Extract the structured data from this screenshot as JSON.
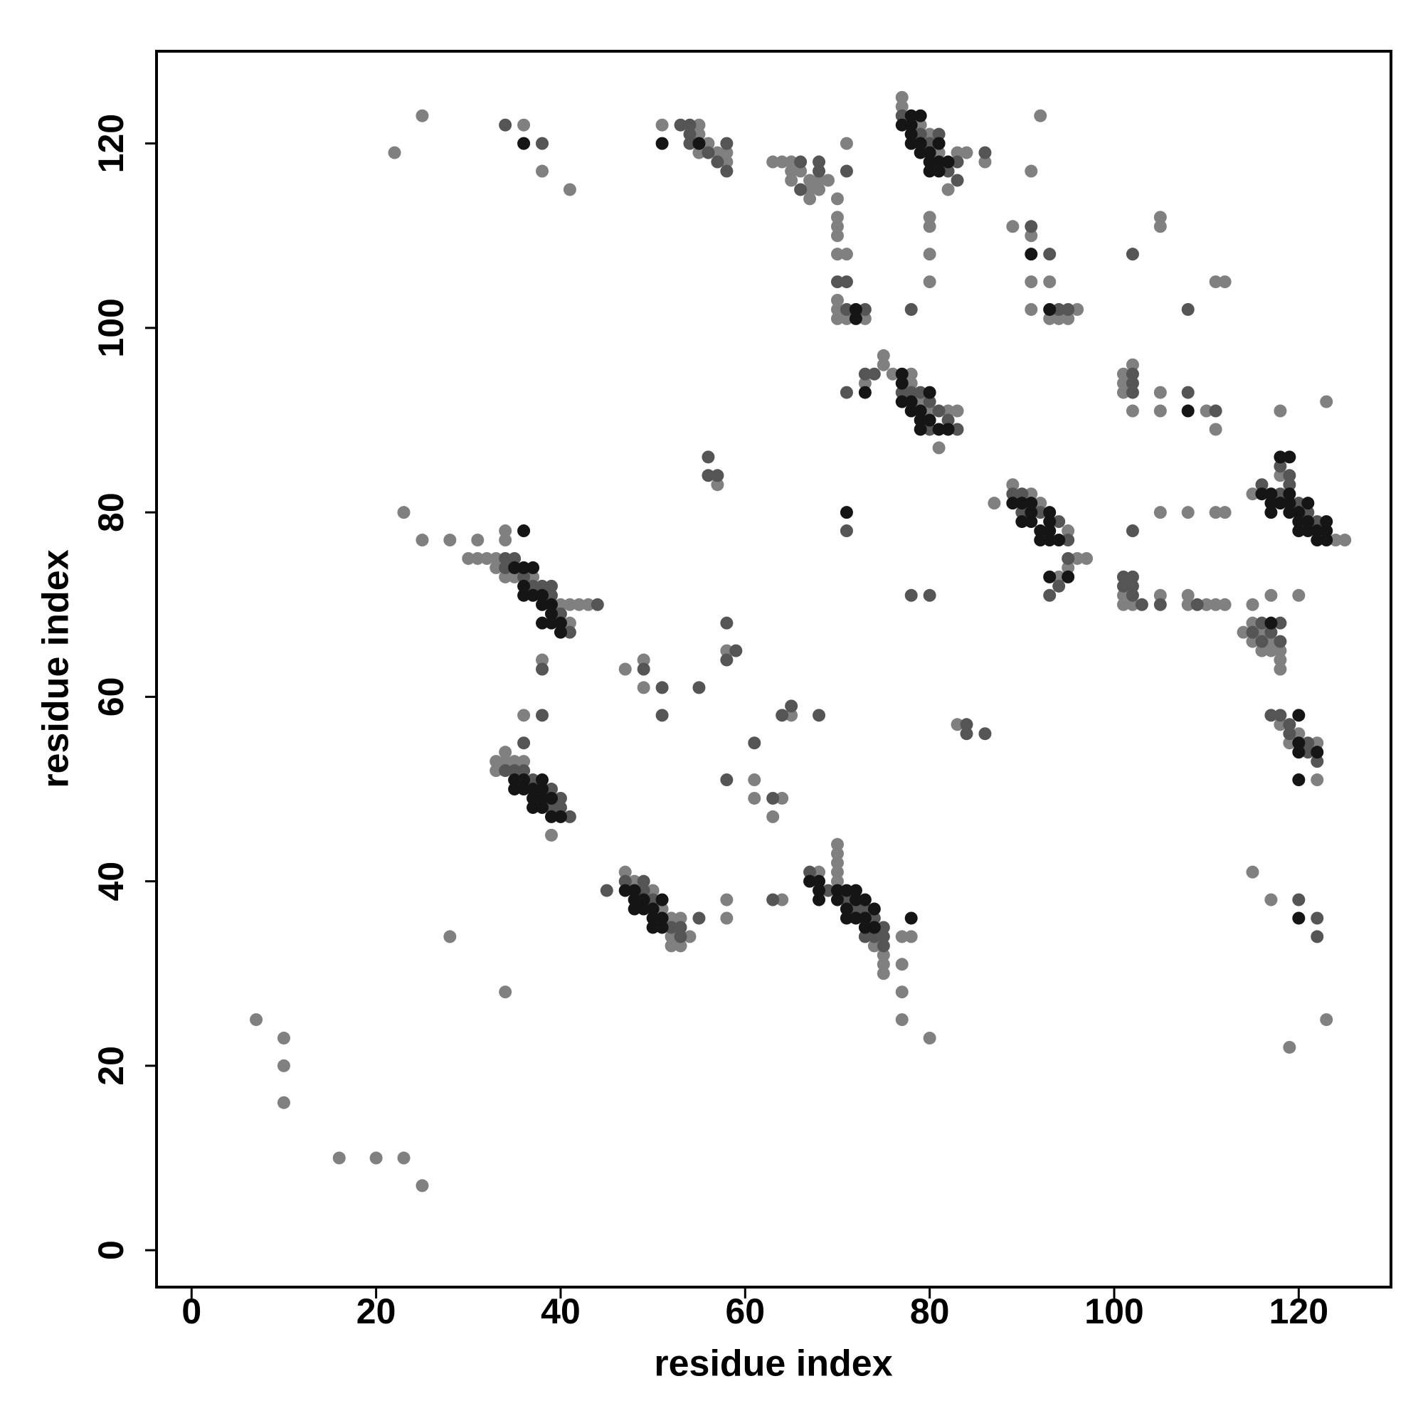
{
  "chart_data": {
    "type": "scatter",
    "xlabel": "residue index",
    "ylabel": "residue index",
    "xlim": [
      -3.8,
      130
    ],
    "ylim": [
      -4,
      130
    ],
    "xticks": [
      0,
      20,
      40,
      60,
      80,
      100,
      120
    ],
    "yticks": [
      0,
      20,
      40,
      60,
      80,
      100,
      120
    ],
    "series": [
      {
        "color": "#808080",
        "x": [
          7,
          10,
          10,
          10,
          16,
          20,
          23,
          25,
          28,
          34,
          22,
          25,
          23,
          25,
          28,
          31,
          30,
          31,
          32,
          33,
          34,
          34,
          38,
          40,
          41,
          42,
          43,
          41,
          33,
          34,
          35,
          37,
          36,
          34,
          33,
          34,
          35,
          36,
          33,
          39,
          47,
          48,
          50,
          51,
          52,
          53,
          52,
          52,
          53,
          54,
          58,
          58,
          47,
          49,
          49,
          58,
          61,
          61,
          63,
          64,
          64,
          70,
          70,
          70,
          70,
          70,
          68,
          75,
          75,
          75,
          77,
          77,
          77,
          80,
          77,
          78,
          74,
          65,
          83,
          57,
          38,
          41,
          36,
          51,
          55,
          55,
          56,
          57,
          58,
          58,
          55,
          63,
          64,
          65,
          65,
          65,
          66,
          67,
          67,
          67,
          68,
          68,
          69,
          70,
          70,
          70,
          70,
          70,
          71,
          70,
          70,
          70,
          71,
          71,
          73,
          77,
          77,
          78,
          79,
          80,
          81,
          82,
          83,
          84,
          86,
          92,
          91,
          80,
          80,
          80,
          80,
          89,
          91,
          91,
          93,
          91,
          96,
          93,
          94,
          95,
          111,
          112,
          105,
          105,
          75,
          75,
          76,
          78,
          78,
          79,
          80,
          81,
          82,
          83,
          73,
          87,
          89,
          91,
          92,
          95,
          96,
          97,
          95,
          94,
          101,
          101,
          101,
          102,
          102,
          105,
          105,
          105,
          108,
          111,
          112,
          101,
          101,
          102,
          105,
          108,
          108,
          110,
          111,
          112,
          115,
          111,
          110,
          123,
          118,
          115,
          118,
          124,
          125,
          114,
          115,
          115,
          116,
          116,
          117,
          117,
          118,
          118,
          118,
          117,
          120,
          118,
          120,
          122,
          122,
          119,
          115,
          117,
          119,
          123
        ],
        "values": [
          25,
          23,
          20,
          16,
          10,
          10,
          10,
          7,
          34,
          28,
          119,
          123,
          80,
          77,
          77,
          77,
          75,
          75,
          75,
          75,
          78,
          77,
          64,
          70,
          70,
          70,
          70,
          68,
          74,
          73,
          73,
          73,
          58,
          54,
          53,
          53,
          53,
          53,
          52,
          45,
          41,
          40,
          39,
          37,
          36,
          36,
          34,
          33,
          33,
          34,
          38,
          36,
          63,
          64,
          61,
          65,
          51,
          49,
          47,
          49,
          38,
          44,
          43,
          42,
          41,
          40,
          41,
          32,
          31,
          30,
          31,
          28,
          25,
          23,
          34,
          34,
          33,
          58,
          57,
          83,
          117,
          115,
          122,
          122,
          122,
          121,
          120,
          119,
          119,
          118,
          119,
          118,
          118,
          118,
          117,
          116,
          117,
          116,
          115,
          114,
          116,
          115,
          116,
          114,
          112,
          111,
          110,
          108,
          108,
          103,
          102,
          101,
          101,
          120,
          101,
          125,
          124,
          121,
          122,
          121,
          119,
          115,
          119,
          119,
          118,
          123,
          117,
          112,
          111,
          108,
          105,
          111,
          110,
          105,
          105,
          102,
          102,
          101,
          101,
          101,
          105,
          105,
          112,
          111,
          97,
          96,
          95,
          95,
          94,
          92,
          91,
          87,
          91,
          91,
          94,
          81,
          83,
          82,
          81,
          78,
          75,
          75,
          74,
          73,
          95,
          94,
          93,
          96,
          91,
          93,
          91,
          80,
          80,
          80,
          80,
          71,
          70,
          70,
          71,
          71,
          70,
          70,
          70,
          70,
          70,
          89,
          91,
          92,
          91,
          82,
          84,
          77,
          77,
          67,
          68,
          66,
          67,
          65,
          66,
          65,
          65,
          64,
          63,
          71,
          71,
          57,
          56,
          51,
          55,
          55,
          41,
          38,
          22,
          25
        ]
      },
      {
        "color": "#555555",
        "x": [
          34,
          35,
          35,
          36,
          37,
          38,
          39,
          39,
          38,
          41,
          44,
          40,
          34,
          36,
          38,
          34,
          35,
          36,
          37,
          39,
          40,
          40,
          41,
          39,
          45,
          47,
          49,
          49,
          50,
          52,
          53,
          55,
          53,
          49,
          51,
          51,
          55,
          58,
          59,
          58,
          61,
          58,
          63,
          63,
          67,
          69,
          71,
          72,
          73,
          74,
          75,
          75,
          75,
          74,
          73,
          64,
          65,
          68,
          84,
          84,
          86,
          56,
          56,
          57,
          34,
          38,
          53,
          54,
          54,
          54,
          56,
          58,
          58,
          57,
          66,
          66,
          68,
          68,
          71,
          70,
          71,
          71,
          73,
          77,
          79,
          80,
          81,
          82,
          83,
          83,
          86,
          78,
          91,
          93,
          94,
          95,
          102,
          108,
          71,
          73,
          74,
          77,
          78,
          79,
          80,
          81,
          82,
          83,
          80,
          71,
          89,
          90,
          90,
          92,
          94,
          95,
          95,
          93,
          94,
          78,
          80,
          102,
          102,
          102,
          102,
          101,
          101,
          102,
          102,
          102,
          103,
          105,
          108,
          111,
          109,
          116,
          118,
          119,
          119,
          120,
          121,
          122,
          118,
          115,
          116,
          116,
          117,
          118,
          118,
          117,
          118,
          119,
          119,
          121,
          121,
          122,
          120,
          122,
          122
        ],
        "values": [
          75,
          75,
          74,
          73,
          72,
          72,
          72,
          71,
          63,
          67,
          70,
          69,
          74,
          55,
          58,
          52,
          52,
          52,
          51,
          50,
          49,
          48,
          47,
          48,
          39,
          40,
          40,
          39,
          38,
          35,
          35,
          36,
          34,
          63,
          61,
          58,
          61,
          68,
          65,
          64,
          55,
          51,
          38,
          49,
          41,
          39,
          38,
          37,
          37,
          36,
          35,
          34,
          33,
          34,
          34,
          58,
          59,
          58,
          57,
          56,
          56,
          86,
          84,
          84,
          122,
          120,
          122,
          122,
          121,
          120,
          119,
          120,
          117,
          118,
          118,
          115,
          118,
          117,
          117,
          105,
          105,
          102,
          102,
          123,
          121,
          120,
          121,
          117,
          118,
          116,
          119,
          102,
          111,
          108,
          102,
          102,
          108,
          102,
          93,
          95,
          95,
          93,
          93,
          93,
          92,
          91,
          90,
          89,
          89,
          78,
          82,
          82,
          80,
          80,
          79,
          77,
          75,
          71,
          72,
          71,
          71,
          95,
          94,
          93,
          78,
          73,
          72,
          73,
          72,
          71,
          70,
          70,
          93,
          91,
          70,
          83,
          85,
          84,
          83,
          81,
          80,
          79,
          82,
          67,
          68,
          66,
          67,
          68,
          66,
          58,
          58,
          57,
          56,
          55,
          54,
          53,
          38,
          36,
          34
        ]
      },
      {
        "color": "#151515",
        "x": [
          36,
          35,
          36,
          37,
          36,
          36,
          37,
          38,
          38,
          39,
          39,
          38,
          39,
          40,
          40,
          35,
          36,
          35,
          36,
          37,
          38,
          38,
          37,
          37,
          38,
          38,
          39,
          39,
          40,
          47,
          48,
          48,
          48,
          49,
          49,
          50,
          50,
          51,
          51,
          50,
          51,
          67,
          68,
          68,
          68,
          70,
          70,
          71,
          71,
          72,
          72,
          72,
          73,
          73,
          74,
          74,
          73,
          71,
          78,
          36,
          51,
          55,
          72,
          72,
          77,
          78,
          78,
          79,
          78,
          79,
          80,
          80,
          81,
          81,
          81,
          82,
          78,
          79,
          80,
          73,
          77,
          77,
          77,
          78,
          78,
          79,
          79,
          80,
          80,
          81,
          82,
          79,
          71,
          91,
          93,
          89,
          90,
          90,
          91,
          91,
          91,
          92,
          92,
          93,
          93,
          93,
          93,
          94,
          93,
          95,
          108,
          118,
          119,
          116,
          117,
          117,
          117,
          118,
          119,
          119,
          119,
          120,
          120,
          121,
          121,
          121,
          122,
          122,
          123,
          123,
          123,
          120,
          117,
          120,
          120,
          120,
          122,
          120,
          120
        ],
        "values": [
          78,
          74,
          74,
          74,
          72,
          71,
          71,
          71,
          70,
          70,
          69,
          68,
          68,
          68,
          67,
          51,
          51,
          50,
          50,
          50,
          51,
          50,
          49,
          48,
          49,
          48,
          49,
          47,
          47,
          39,
          39,
          38,
          37,
          38,
          37,
          37,
          36,
          38,
          36,
          35,
          35,
          40,
          40,
          39,
          38,
          39,
          38,
          39,
          37,
          39,
          38,
          36,
          38,
          36,
          37,
          35,
          35,
          36,
          36,
          120,
          120,
          120,
          102,
          101,
          122,
          123,
          122,
          123,
          120,
          120,
          119,
          117,
          120,
          118,
          117,
          118,
          121,
          119,
          118,
          93,
          95,
          94,
          92,
          92,
          91,
          91,
          90,
          93,
          90,
          89,
          89,
          89,
          80,
          108,
          102,
          81,
          81,
          79,
          81,
          80,
          79,
          78,
          77,
          80,
          79,
          78,
          77,
          77,
          73,
          73,
          91,
          86,
          86,
          82,
          82,
          81,
          80,
          81,
          82,
          81,
          80,
          80,
          79,
          81,
          79,
          78,
          78,
          77,
          79,
          78,
          77,
          78,
          68,
          58,
          55,
          54,
          54,
          51,
          36
        ]
      }
    ]
  }
}
